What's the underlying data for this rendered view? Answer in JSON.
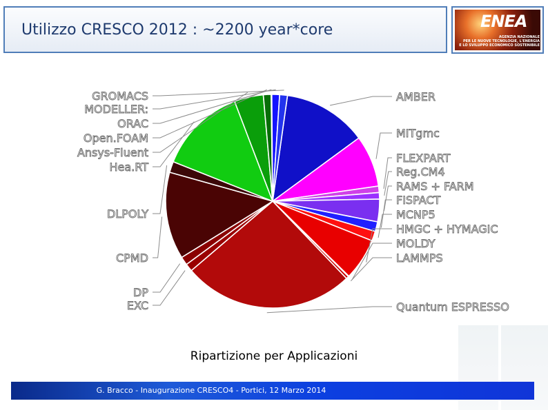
{
  "slide": {
    "title": "Utilizzo CRESCO 2012 : ~2200 year*core",
    "caption": "Ripartizione per Applicazioni",
    "footer": "G. Bracco - Inaugurazione CRESCO4 -  Portici, 12 Marzo 2014"
  },
  "logo": {
    "word": "ENEA",
    "sub_lines": [
      "AGENZIA NAZIONALE",
      "PER LE NUOVE TECNOLOGIE, L'ENERGIA",
      "E LO SVILUPPO ECONOMICO SOSTENIBILE"
    ]
  },
  "chart_data": {
    "type": "pie",
    "title": "",
    "start_angle_deg": -82,
    "direction": "clockwise",
    "slices": [
      {
        "name": "AMBER",
        "value": 13,
        "color": "#1010c8"
      },
      {
        "name": "MITgmc",
        "value": 8,
        "color": "#ff00ff"
      },
      {
        "name": "FLEXPART",
        "value": 1,
        "color": "#d040e8"
      },
      {
        "name": "Reg.CM4",
        "value": 1,
        "color": "#9b30ff"
      },
      {
        "name": "RAMS + FARM",
        "value": 3.5,
        "color": "#7a2ff0"
      },
      {
        "name": "FISPACT",
        "value": 1.5,
        "color": "#2020ff"
      },
      {
        "name": "MCNP5",
        "value": 1.5,
        "color": "#ff1010"
      },
      {
        "name": "HMGC + HYMAGIC",
        "value": 6.5,
        "color": "#e80000"
      },
      {
        "name": "MOLDY",
        "value": 0.1,
        "color": "#cc0000"
      },
      {
        "name": "LAMMPS",
        "value": 0.4,
        "color": "#cc0000"
      },
      {
        "name": "Quantum ESPRESSO",
        "value": 26.5,
        "color": "#b20a0a"
      },
      {
        "name": "EXC",
        "value": 1.2,
        "color": "#9a0000"
      },
      {
        "name": "DP",
        "value": 1.3,
        "color": "#8a0000"
      },
      {
        "name": "CPMD",
        "value": 13.5,
        "color": "#4a0404"
      },
      {
        "name": "DLPOLY",
        "value": 1.7,
        "color": "#3c0808"
      },
      {
        "name": "Hea.RT",
        "value": 13.5,
        "color": "#11cc11"
      },
      {
        "name": "Ansys-Fluent",
        "value": 4.5,
        "color": "#0a9e0a"
      },
      {
        "name": "Open.FOAM",
        "value": 1.2,
        "color": "#086e08"
      },
      {
        "name": "ORAC",
        "value": 0.1,
        "color": "#0a7a30"
      },
      {
        "name": "MODELLER:",
        "value": 1.2,
        "color": "#1414ff"
      },
      {
        "name": "GROMACS",
        "value": 1.2,
        "color": "#2233ee"
      }
    ]
  }
}
